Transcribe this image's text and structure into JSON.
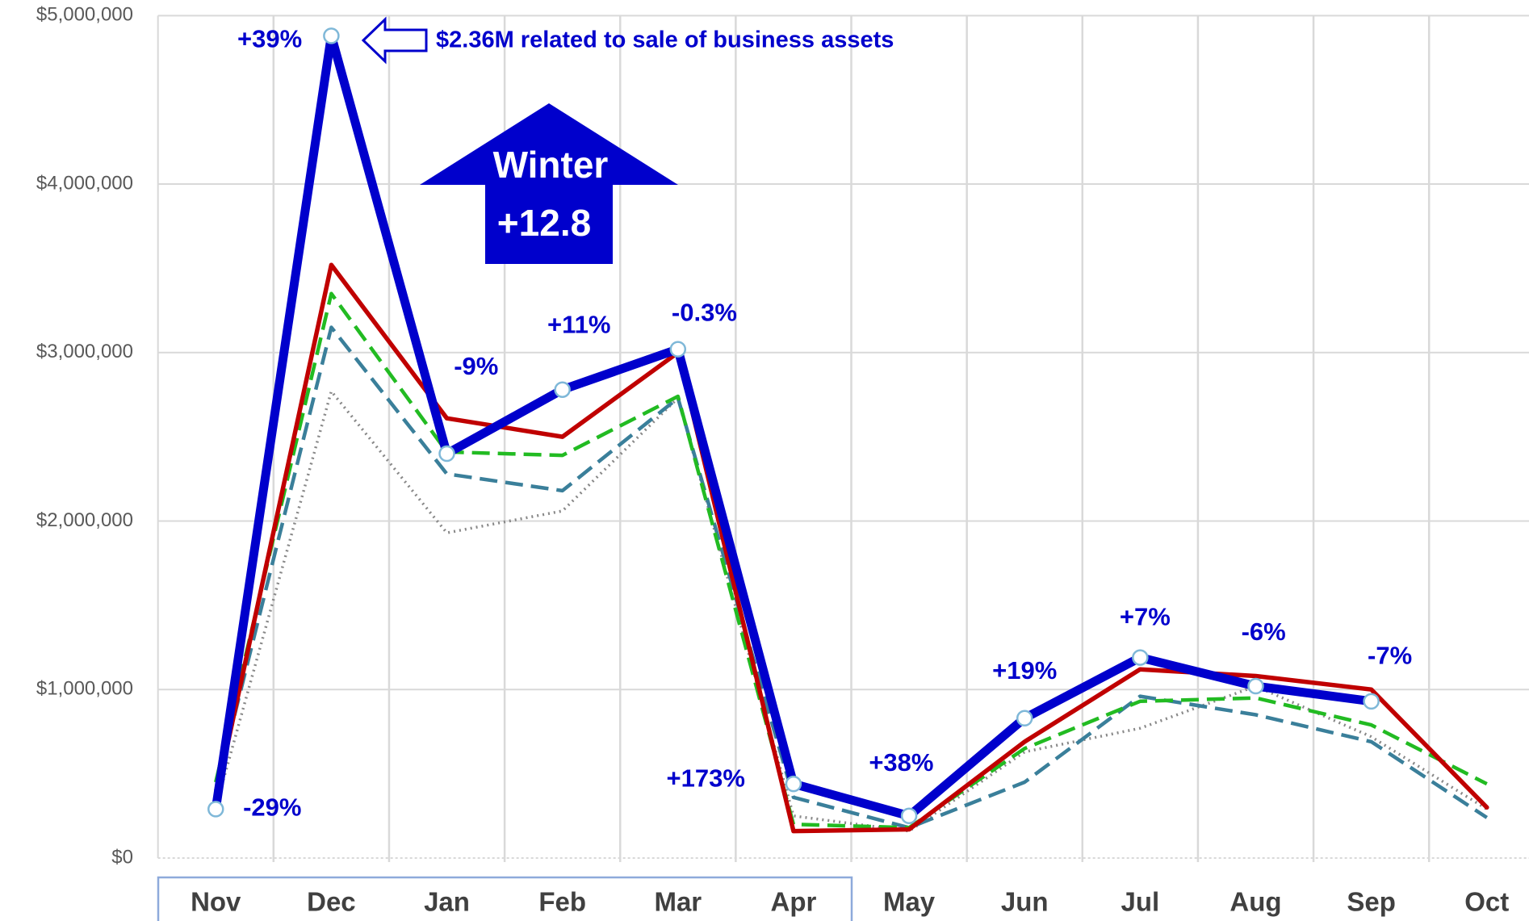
{
  "chart_data": {
    "type": "line",
    "categories": [
      "Nov",
      "Dec",
      "Jan",
      "Feb",
      "Mar",
      "Apr",
      "May",
      "Jun",
      "Jul",
      "Aug",
      "Sep",
      "Oct"
    ],
    "series": [
      {
        "color": "#888888",
        "style": "dotted",
        "values": [
          300000,
          2770000,
          1930000,
          2060000,
          2730000,
          250000,
          160000,
          630000,
          770000,
          1020000,
          720000,
          290000
        ]
      },
      {
        "color": "#3a7f9a",
        "style": "dashed",
        "values": [
          400000,
          3150000,
          2280000,
          2180000,
          2730000,
          360000,
          180000,
          450000,
          960000,
          850000,
          690000,
          240000
        ]
      },
      {
        "color": "#22bb22",
        "style": "dashed",
        "values": [
          450000,
          3350000,
          2410000,
          2390000,
          2740000,
          200000,
          180000,
          650000,
          930000,
          950000,
          790000,
          440000
        ]
      },
      {
        "color": "#c00000",
        "style": "solid",
        "values": [
          350000,
          3520000,
          2610000,
          2500000,
          3000000,
          160000,
          170000,
          690000,
          1120000,
          1080000,
          1000000,
          300000
        ]
      },
      {
        "color": "#0000cc",
        "style": "bold",
        "markers": true,
        "values": [
          290000,
          4880000,
          2400000,
          2780000,
          3020000,
          440000,
          250000,
          830000,
          1190000,
          1020000,
          930000,
          null
        ],
        "point_labels": [
          "-29%",
          "+39%",
          "-9%",
          "+11%",
          "-0.3%",
          "+173%",
          "+38%",
          "+19%",
          "+7%",
          "-6%",
          "-7%",
          null
        ]
      }
    ],
    "ylim": [
      0,
      5000000
    ],
    "yticks": [
      {
        "value": 0,
        "label": "$0"
      },
      {
        "value": 1000000,
        "label": "$1,000,000"
      },
      {
        "value": 2000000,
        "label": "$2,000,000"
      },
      {
        "value": 3000000,
        "label": "$3,000,000"
      },
      {
        "value": 4000000,
        "label": "$4,000,000"
      },
      {
        "value": 5000000,
        "label": "$5,000,000"
      }
    ],
    "grid": true,
    "annotations": {
      "note": "$2.36M related to sale of business assets",
      "arrow_title": "Winter",
      "arrow_value": "+12.8"
    }
  }
}
